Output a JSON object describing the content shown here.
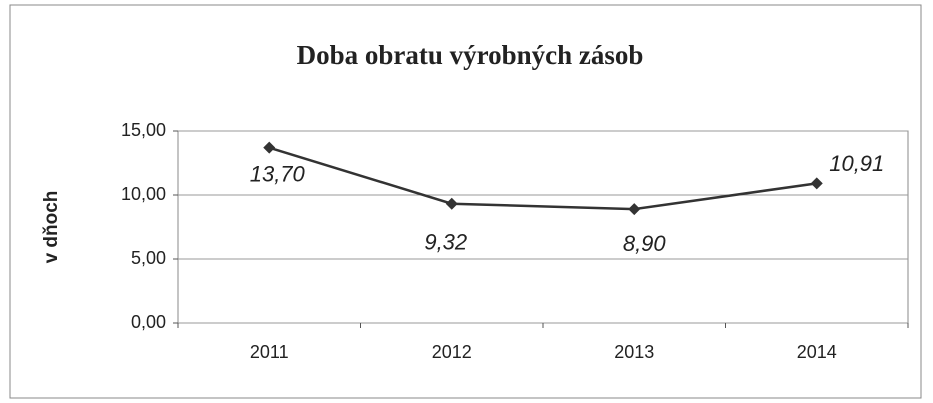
{
  "chart_data": {
    "type": "line",
    "title": "Doba obratu výrobných zásob",
    "y_label": "v dňoch",
    "categories": [
      "2011",
      "2012",
      "2013",
      "2014"
    ],
    "series": [
      {
        "name": null,
        "color": "#333333",
        "values": [
          13.7,
          9.32,
          8.9,
          10.91
        ],
        "value_labels": [
          "13,70",
          "9,32",
          "8,90",
          "10,91"
        ]
      }
    ],
    "ylim": [
      0,
      15
    ],
    "yticks": [
      {
        "value": 0,
        "label": "0,00"
      },
      {
        "value": 5,
        "label": "5,00"
      },
      {
        "value": 10,
        "label": "10,00"
      },
      {
        "value": 15,
        "label": "15,00"
      }
    ],
    "grid": true
  }
}
